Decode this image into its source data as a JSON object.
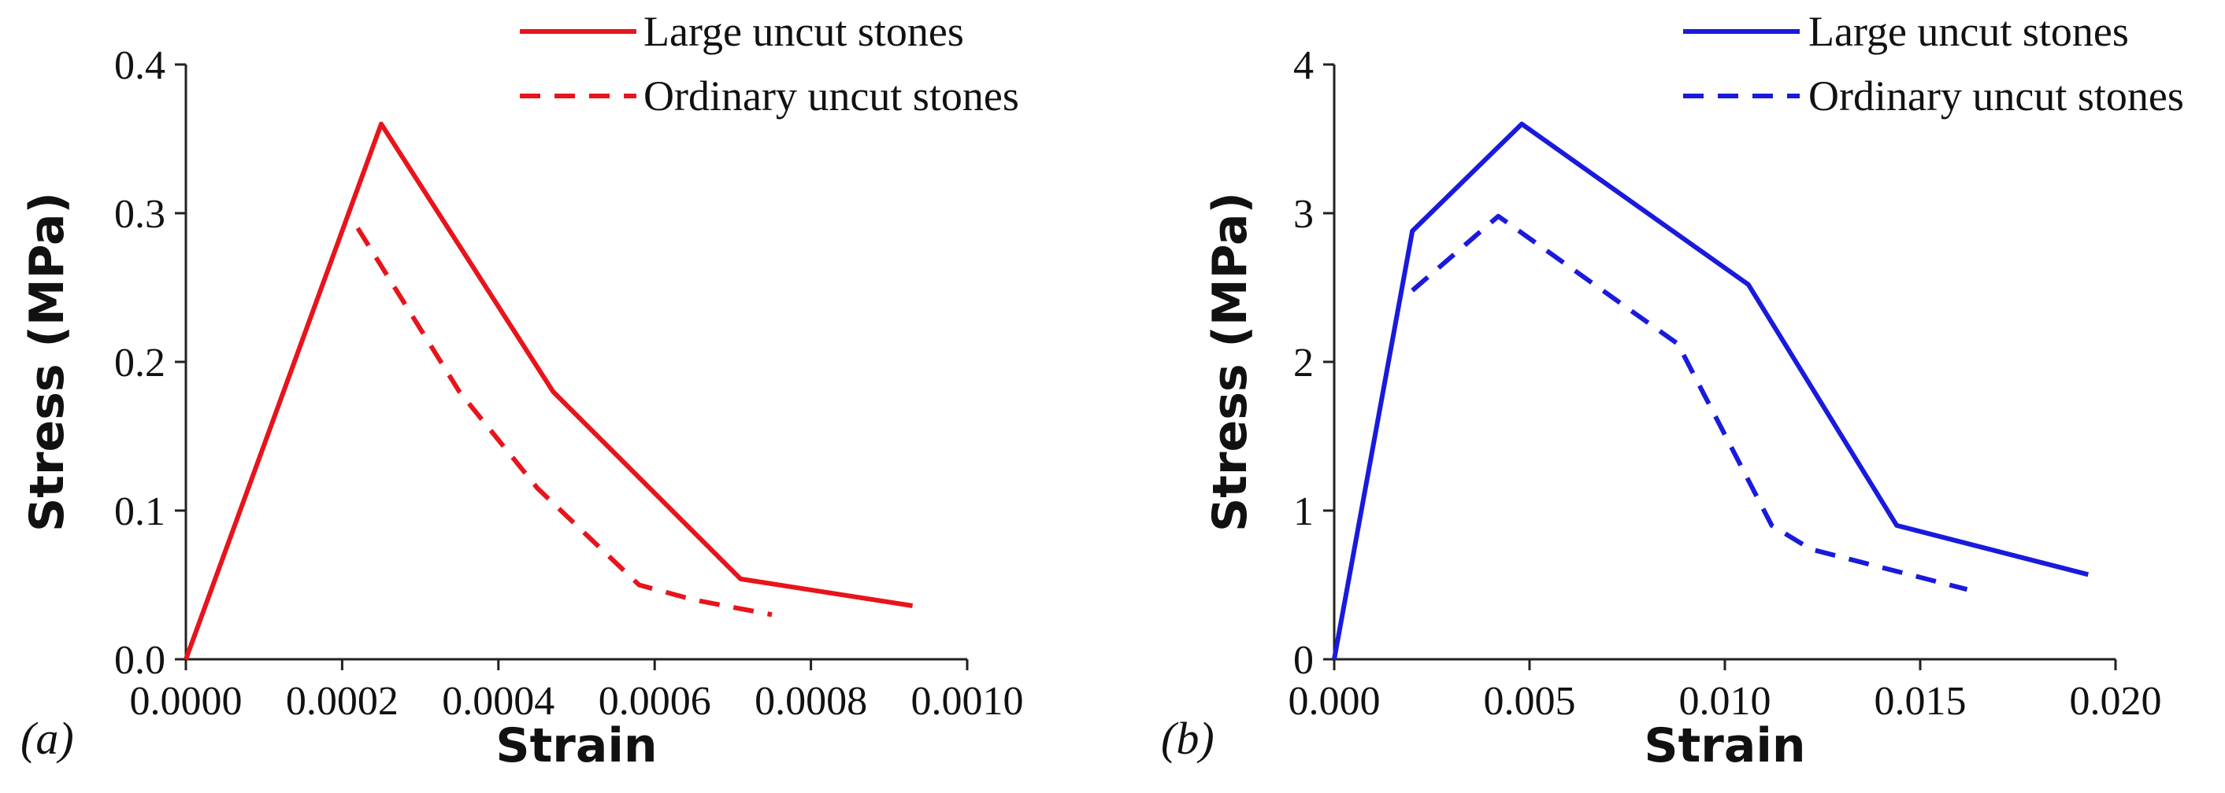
{
  "chart_data": [
    {
      "type": "line",
      "panel_label": "(a)",
      "xlabel": "Strain",
      "ylabel": "Stress (MPa)",
      "xlim": [
        0.0,
        0.001
      ],
      "ylim": [
        0.0,
        0.4
      ],
      "xticks": [
        "0.0000",
        "0.0002",
        "0.0004",
        "0.0006",
        "0.0008",
        "0.0010"
      ],
      "yticks": [
        "0.0",
        "0.1",
        "0.2",
        "0.3",
        "0.4"
      ],
      "grid": false,
      "legend_position": "top-right",
      "color": "#e8141b",
      "series": [
        {
          "name": "Large uncut stones",
          "style": "solid",
          "x": [
            0.0,
            0.00025,
            0.00047,
            0.00071,
            0.00093
          ],
          "y": [
            0.0,
            0.36,
            0.18,
            0.054,
            0.036
          ]
        },
        {
          "name": "Ordinary uncut stones",
          "style": "dashed",
          "x": [
            0.00022,
            0.00035,
            0.00045,
            0.00058,
            0.00065,
            0.00075
          ],
          "y": [
            0.29,
            0.18,
            0.115,
            0.05,
            0.04,
            0.03
          ]
        }
      ]
    },
    {
      "type": "line",
      "panel_label": "(b)",
      "xlabel": "Strain",
      "ylabel": "Stress (MPa)",
      "xlim": [
        0.0,
        0.02
      ],
      "ylim": [
        0,
        4
      ],
      "xticks": [
        "0.000",
        "0.005",
        "0.010",
        "0.015",
        "0.020"
      ],
      "yticks": [
        "0",
        "1",
        "2",
        "3",
        "4"
      ],
      "grid": false,
      "legend_position": "top-right",
      "color": "#1a1adc",
      "series": [
        {
          "name": "Large uncut stones",
          "style": "solid",
          "x": [
            0.0,
            0.002,
            0.0048,
            0.0106,
            0.0144,
            0.0193
          ],
          "y": [
            0.0,
            2.88,
            3.6,
            2.52,
            0.9,
            0.57
          ]
        },
        {
          "name": "Ordinary uncut stones",
          "style": "dashed",
          "x": [
            0.002,
            0.0042,
            0.0088,
            0.0112,
            0.0122,
            0.0162
          ],
          "y": [
            2.48,
            2.98,
            2.12,
            0.9,
            0.74,
            0.47
          ]
        }
      ]
    }
  ]
}
